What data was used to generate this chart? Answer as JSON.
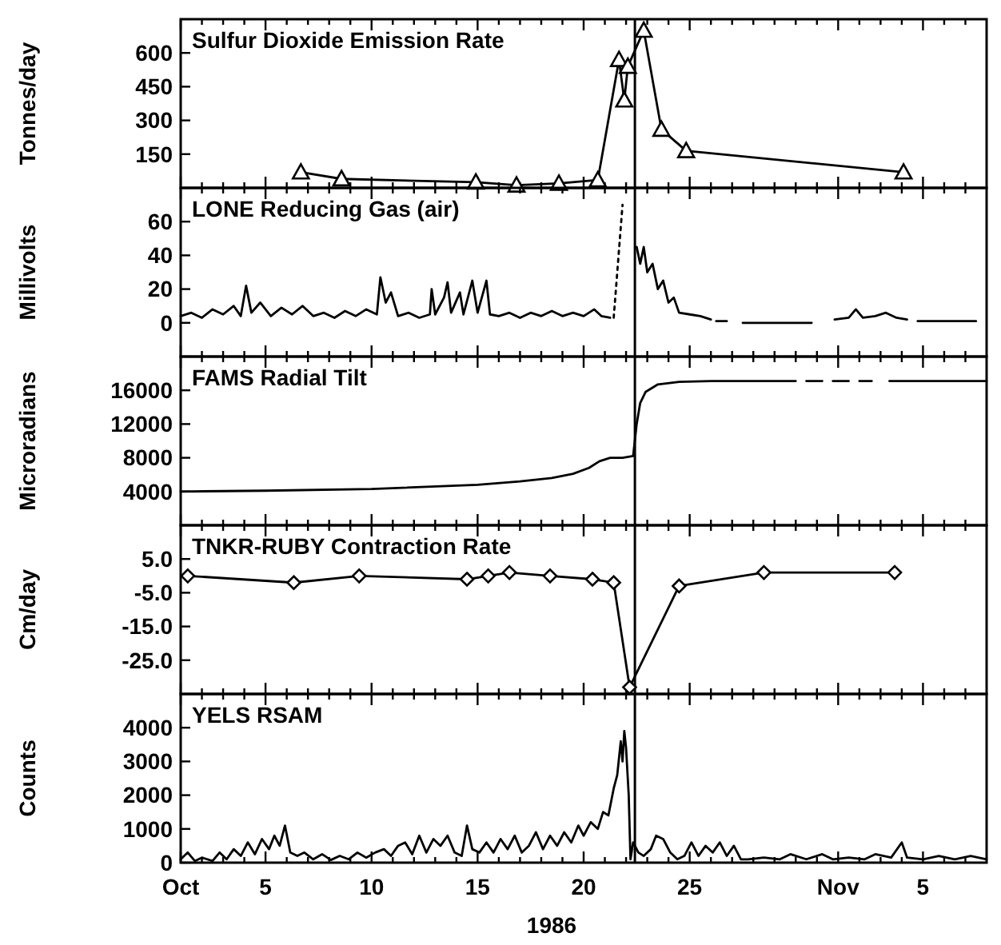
{
  "chart_data": [
    {
      "type": "line",
      "title": "Sulfur Dioxide Emission Rate",
      "ylabel": "Tonnes/day",
      "marker": "triangle",
      "tick_labels": "y",
      "xlim": [
        "1986-10-01",
        "1986-11-08"
      ],
      "ylim": [
        0,
        750
      ],
      "yticks": [
        150,
        300,
        450,
        600
      ],
      "xticks": [
        "1986-10-01",
        {
          "value": "1986-10-02",
          "label": null
        },
        {
          "value": "1986-10-03",
          "label": null
        },
        {
          "value": "1986-10-04",
          "label": null
        },
        "1986-10-05",
        {
          "value": "1986-10-06",
          "label": null
        },
        {
          "value": "1986-10-07",
          "label": null
        },
        {
          "value": "1986-10-08",
          "label": null
        },
        {
          "value": "1986-10-09",
          "label": null
        },
        "1986-10-10",
        {
          "value": "1986-10-11",
          "label": null
        },
        {
          "value": "1986-10-12",
          "label": null
        },
        {
          "value": "1986-10-13",
          "label": null
        },
        {
          "value": "1986-10-14",
          "label": null
        },
        "1986-10-15",
        {
          "value": "1986-10-16",
          "label": null
        },
        {
          "value": "1986-10-17",
          "label": null
        },
        {
          "value": "1986-10-18",
          "label": null
        },
        {
          "value": "1986-10-19",
          "label": null
        },
        "1986-10-20",
        {
          "value": "1986-10-21",
          "label": null
        },
        {
          "value": "1986-10-22",
          "label": null
        },
        {
          "value": "1986-10-23",
          "label": null
        },
        {
          "value": "1986-10-24",
          "label": null
        },
        "1986-10-25",
        {
          "value": "1986-10-26",
          "label": null
        },
        {
          "value": "1986-10-27",
          "label": null
        },
        {
          "value": "1986-10-28",
          "label": null
        },
        {
          "value": "1986-10-29",
          "label": null
        },
        {
          "value": "1986-10-30",
          "label": null
        },
        {
          "value": "1986-10-31",
          "label": null
        },
        "1986-11-01",
        {
          "value": "1986-11-02",
          "label": null
        },
        {
          "value": "1986-11-03",
          "label": null
        },
        {
          "value": "1986-11-04",
          "label": null
        },
        "1986-11-05",
        {
          "value": "1986-11-06",
          "label": null
        },
        {
          "value": "1986-11-07",
          "label": null
        }
      ],
      "ref_lines": [
        {
          "axis": "x",
          "value": "1986-10-22T10:00",
          "color": "#000000"
        }
      ],
      "series": [
        {
          "color": "#000000",
          "x": [
            "1986-10-06T16:00",
            "1986-10-08T14:00",
            "1986-10-14T22:00",
            "1986-10-16T20:00",
            "1986-10-18T20:00",
            "1986-10-20T16:00",
            "1986-10-21T16:00",
            "1986-10-21T22:00",
            "1986-10-22T02:00",
            "1986-10-22T20:00",
            "1986-10-23T16:00",
            "1986-10-24T20:00",
            "1986-11-04T02:00"
          ],
          "values": [
            70,
            40,
            25,
            12,
            20,
            35,
            570,
            390,
            540,
            700,
            260,
            165,
            70
          ]
        }
      ]
    },
    {
      "type": "line",
      "title": "LONE Reducing Gas (air)",
      "ylabel": "Millivolts",
      "marker": "none",
      "tick_labels": "y",
      "xlim": [
        "1986-10-01",
        "1986-11-08"
      ],
      "ylim": [
        -20,
        80
      ],
      "yticks": [
        0,
        20,
        40,
        60
      ],
      "xticks": [
        "1986-10-01",
        {
          "value": "1986-10-02",
          "label": null
        },
        {
          "value": "1986-10-03",
          "label": null
        },
        {
          "value": "1986-10-04",
          "label": null
        },
        "1986-10-05",
        {
          "value": "1986-10-06",
          "label": null
        },
        {
          "value": "1986-10-07",
          "label": null
        },
        {
          "value": "1986-10-08",
          "label": null
        },
        {
          "value": "1986-10-09",
          "label": null
        },
        "1986-10-10",
        {
          "value": "1986-10-11",
          "label": null
        },
        {
          "value": "1986-10-12",
          "label": null
        },
        {
          "value": "1986-10-13",
          "label": null
        },
        {
          "value": "1986-10-14",
          "label": null
        },
        "1986-10-15",
        {
          "value": "1986-10-16",
          "label": null
        },
        {
          "value": "1986-10-17",
          "label": null
        },
        {
          "value": "1986-10-18",
          "label": null
        },
        {
          "value": "1986-10-19",
          "label": null
        },
        "1986-10-20",
        {
          "value": "1986-10-21",
          "label": null
        },
        {
          "value": "1986-10-22",
          "label": null
        },
        {
          "value": "1986-10-23",
          "label": null
        },
        {
          "value": "1986-10-24",
          "label": null
        },
        "1986-10-25",
        {
          "value": "1986-10-26",
          "label": null
        },
        {
          "value": "1986-10-27",
          "label": null
        },
        {
          "value": "1986-10-28",
          "label": null
        },
        {
          "value": "1986-10-29",
          "label": null
        },
        {
          "value": "1986-10-30",
          "label": null
        },
        {
          "value": "1986-10-31",
          "label": null
        },
        "1986-11-01",
        {
          "value": "1986-11-02",
          "label": null
        },
        {
          "value": "1986-11-03",
          "label": null
        },
        {
          "value": "1986-11-04",
          "label": null
        },
        "1986-11-05",
        {
          "value": "1986-11-06",
          "label": null
        },
        {
          "value": "1986-11-07",
          "label": null
        }
      ],
      "ref_lines": [
        {
          "axis": "x",
          "value": "1986-10-22T10:00",
          "color": "#000000"
        }
      ],
      "series": [
        {
          "color": "#000000",
          "line_style": "solid",
          "x": [
            "1986-10-01T00:00",
            "1986-10-01T12:00",
            "1986-10-02T00:00",
            "1986-10-02T12:00",
            "1986-10-03T00:00",
            "1986-10-03T12:00",
            "1986-10-03T20:00",
            "1986-10-04T02:00",
            "1986-10-04T08:00",
            "1986-10-04T18:00",
            "1986-10-05T06:00",
            "1986-10-05T18:00",
            "1986-10-06T06:00",
            "1986-10-06T18:00",
            "1986-10-07T06:00",
            "1986-10-07T18:00",
            "1986-10-08T06:00",
            "1986-10-08T18:00",
            "1986-10-09T06:00",
            "1986-10-09T18:00",
            "1986-10-10T06:00",
            "1986-10-10T10:00",
            "1986-10-10T16:00",
            "1986-10-10T22:00",
            "1986-10-11T06:00",
            "1986-10-11T18:00",
            "1986-10-12T06:00",
            "1986-10-12T18:00",
            "1986-10-12T20:00",
            "1986-10-13T00:00",
            "1986-10-13T10:00",
            "1986-10-13T14:00",
            "1986-10-13T18:00",
            "1986-10-14T04:00",
            "1986-10-14T08:00",
            "1986-10-14T18:00",
            "1986-10-15T00:00",
            "1986-10-15T10:00",
            "1986-10-15T14:00",
            "1986-10-16T00:00",
            "1986-10-16T12:00",
            "1986-10-17T00:00",
            "1986-10-17T12:00",
            "1986-10-18T00:00",
            "1986-10-18T12:00",
            "1986-10-19T00:00",
            "1986-10-19T12:00",
            "1986-10-20T00:00",
            "1986-10-20T12:00",
            "1986-10-20T20:00",
            "1986-10-21T06:00",
            "1986-10-21T08:00",
            "1986-10-22T12:00",
            "1986-10-22T16:00",
            "1986-10-22T20:00",
            "1986-10-23T00:00",
            "1986-10-23T06:00",
            "1986-10-23T12:00",
            "1986-10-23T18:00",
            "1986-10-24T00:00",
            "1986-10-24T06:00",
            "1986-10-24T12:00",
            "1986-10-25T00:00",
            "1986-10-25T12:00",
            "1986-10-26T00:00",
            "1986-10-26T03:00",
            "1986-10-26T06:00",
            "1986-10-26T18:00",
            "1986-10-26T21:00",
            "1986-10-27T12:00",
            "1986-10-30T18:00",
            "1986-10-31T00:00",
            "1986-10-31T20:00",
            "1986-11-01T12:00",
            "1986-11-01T20:00",
            "1986-11-02T04:00",
            "1986-11-02T18:00",
            "1986-11-03T06:00",
            "1986-11-03T18:00",
            "1986-11-04T06:00",
            "1986-11-04T12:00",
            "1986-11-04T18:00",
            "1986-11-07T12:00"
          ],
          "values": [
            4,
            6,
            3,
            8,
            5,
            10,
            4,
            22,
            6,
            12,
            4,
            9,
            5,
            10,
            4,
            6,
            3,
            7,
            4,
            8,
            5,
            27,
            12,
            18,
            4,
            6,
            3,
            5,
            20,
            5,
            15,
            24,
            6,
            18,
            5,
            25,
            6,
            25,
            5,
            4,
            6,
            3,
            6,
            4,
            7,
            4,
            6,
            4,
            8,
            4,
            3,
            null,
            45,
            35,
            45,
            30,
            35,
            20,
            25,
            12,
            15,
            6,
            5,
            4,
            2,
            null,
            1,
            1,
            null,
            0,
            0,
            null,
            2,
            3,
            8,
            3,
            4,
            6,
            3,
            2,
            null,
            1,
            1
          ]
        },
        {
          "color": "#000000",
          "line_style": "dotted",
          "x": [
            "1986-10-21T10:00",
            "1986-10-21T20:00"
          ],
          "values": [
            3,
            70
          ]
        }
      ]
    },
    {
      "type": "line",
      "title": "FAMS Radial Tilt",
      "ylabel": "Microradians",
      "marker": "none",
      "tick_labels": "y",
      "xlim": [
        "1986-10-01",
        "1986-11-08"
      ],
      "ylim": [
        0,
        20000
      ],
      "yticks": [
        4000,
        8000,
        12000,
        16000
      ],
      "xticks": [
        "1986-10-01",
        {
          "value": "1986-10-02",
          "label": null
        },
        {
          "value": "1986-10-03",
          "label": null
        },
        {
          "value": "1986-10-04",
          "label": null
        },
        "1986-10-05",
        {
          "value": "1986-10-06",
          "label": null
        },
        {
          "value": "1986-10-07",
          "label": null
        },
        {
          "value": "1986-10-08",
          "label": null
        },
        {
          "value": "1986-10-09",
          "label": null
        },
        "1986-10-10",
        {
          "value": "1986-10-11",
          "label": null
        },
        {
          "value": "1986-10-12",
          "label": null
        },
        {
          "value": "1986-10-13",
          "label": null
        },
        {
          "value": "1986-10-14",
          "label": null
        },
        "1986-10-15",
        {
          "value": "1986-10-16",
          "label": null
        },
        {
          "value": "1986-10-17",
          "label": null
        },
        {
          "value": "1986-10-18",
          "label": null
        },
        {
          "value": "1986-10-19",
          "label": null
        },
        "1986-10-20",
        {
          "value": "1986-10-21",
          "label": null
        },
        {
          "value": "1986-10-22",
          "label": null
        },
        {
          "value": "1986-10-23",
          "label": null
        },
        {
          "value": "1986-10-24",
          "label": null
        },
        "1986-10-25",
        {
          "value": "1986-10-26",
          "label": null
        },
        {
          "value": "1986-10-27",
          "label": null
        },
        {
          "value": "1986-10-28",
          "label": null
        },
        {
          "value": "1986-10-29",
          "label": null
        },
        {
          "value": "1986-10-30",
          "label": null
        },
        {
          "value": "1986-10-31",
          "label": null
        },
        "1986-11-01",
        {
          "value": "1986-11-02",
          "label": null
        },
        {
          "value": "1986-11-03",
          "label": null
        },
        {
          "value": "1986-11-04",
          "label": null
        },
        "1986-11-05",
        {
          "value": "1986-11-06",
          "label": null
        },
        {
          "value": "1986-11-07",
          "label": null
        }
      ],
      "ref_lines": [
        {
          "axis": "x",
          "value": "1986-10-22T10:00",
          "color": "#000000"
        }
      ],
      "series": [
        {
          "color": "#000000",
          "x": [
            "1986-10-01T00:00",
            "1986-10-05T00:00",
            "1986-10-10T00:00",
            "1986-10-15T00:00",
            "1986-10-17T00:00",
            "1986-10-18T12:00",
            "1986-10-19T12:00",
            "1986-10-20T06:00",
            "1986-10-20T18:00",
            "1986-10-21T06:00",
            "1986-10-21T20:00",
            "1986-10-22T08:00",
            "1986-10-22T12:00",
            "1986-10-22T16:00",
            "1986-10-22T22:00",
            "1986-10-23T12:00",
            "1986-10-24T12:00",
            "1986-10-26T00:00",
            "1986-10-30T00:00",
            "1986-10-30T06:00",
            "1986-10-30T12:00",
            "1986-10-31T06:00",
            "1986-10-31T12:00",
            "1986-10-31T18:00",
            "1986-11-01T12:00",
            "1986-11-01T18:00",
            "1986-11-02T00:00",
            "1986-11-02T14:00",
            "1986-11-02T20:00",
            "1986-11-03T10:00",
            "1986-11-08T00:00"
          ],
          "values": [
            4000,
            4100,
            4300,
            4800,
            5200,
            5600,
            6100,
            6800,
            7600,
            8000,
            8000,
            8200,
            12000,
            14500,
            15800,
            16700,
            17000,
            17100,
            17100,
            null,
            17100,
            17100,
            null,
            17100,
            17100,
            null,
            17100,
            17100,
            null,
            17100,
            17100
          ]
        }
      ]
    },
    {
      "type": "line",
      "title": "TNKR-RUBY Contraction Rate",
      "ylabel": "Cm/day",
      "marker": "diamond",
      "tick_labels": "y",
      "xlim": [
        "1986-10-01",
        "1986-11-08"
      ],
      "ylim": [
        -35,
        15
      ],
      "yticks": [
        {
          "value": 5,
          "label": "5.0"
        },
        {
          "value": -5,
          "label": "-5.0"
        },
        {
          "value": -15,
          "label": "-15.0"
        },
        {
          "value": -25,
          "label": "-25.0"
        }
      ],
      "xticks": [
        "1986-10-01",
        {
          "value": "1986-10-02",
          "label": null
        },
        {
          "value": "1986-10-03",
          "label": null
        },
        {
          "value": "1986-10-04",
          "label": null
        },
        "1986-10-05",
        {
          "value": "1986-10-06",
          "label": null
        },
        {
          "value": "1986-10-07",
          "label": null
        },
        {
          "value": "1986-10-08",
          "label": null
        },
        {
          "value": "1986-10-09",
          "label": null
        },
        "1986-10-10",
        {
          "value": "1986-10-11",
          "label": null
        },
        {
          "value": "1986-10-12",
          "label": null
        },
        {
          "value": "1986-10-13",
          "label": null
        },
        {
          "value": "1986-10-14",
          "label": null
        },
        "1986-10-15",
        {
          "value": "1986-10-16",
          "label": null
        },
        {
          "value": "1986-10-17",
          "label": null
        },
        {
          "value": "1986-10-18",
          "label": null
        },
        {
          "value": "1986-10-19",
          "label": null
        },
        "1986-10-20",
        {
          "value": "1986-10-21",
          "label": null
        },
        {
          "value": "1986-10-22",
          "label": null
        },
        {
          "value": "1986-10-23",
          "label": null
        },
        {
          "value": "1986-10-24",
          "label": null
        },
        "1986-10-25",
        {
          "value": "1986-10-26",
          "label": null
        },
        {
          "value": "1986-10-27",
          "label": null
        },
        {
          "value": "1986-10-28",
          "label": null
        },
        {
          "value": "1986-10-29",
          "label": null
        },
        {
          "value": "1986-10-30",
          "label": null
        },
        {
          "value": "1986-10-31",
          "label": null
        },
        "1986-11-01",
        {
          "value": "1986-11-02",
          "label": null
        },
        {
          "value": "1986-11-03",
          "label": null
        },
        {
          "value": "1986-11-04",
          "label": null
        },
        "1986-11-05",
        {
          "value": "1986-11-06",
          "label": null
        },
        {
          "value": "1986-11-07",
          "label": null
        }
      ],
      "ref_lines": [
        {
          "axis": "x",
          "value": "1986-10-22T10:00",
          "color": "#000000"
        }
      ],
      "series": [
        {
          "color": "#000000",
          "x": [
            "1986-10-01T08:00",
            "1986-10-06T08:00",
            "1986-10-09T10:00",
            "1986-10-14T12:00",
            "1986-10-15T12:00",
            "1986-10-16T12:00",
            "1986-10-18T10:00",
            "1986-10-20T10:00",
            "1986-10-21T10:00",
            "1986-10-22T04:00",
            "1986-10-24T12:00",
            "1986-10-28T12:00",
            "1986-11-03T16:00"
          ],
          "values": [
            0,
            -2,
            0,
            -1,
            0,
            1,
            0,
            -1,
            -2,
            -33,
            -3,
            1,
            1
          ]
        }
      ]
    },
    {
      "type": "line",
      "title": "YELS RSAM",
      "ylabel": "Counts",
      "xlabel": "1986",
      "marker": "none",
      "xlim": [
        "1986-10-01",
        "1986-11-08"
      ],
      "ylim": [
        0,
        5000
      ],
      "yticks": [
        0,
        1000,
        2000,
        3000,
        4000
      ],
      "xticks": [
        {
          "value": "1986-10-01",
          "label": "Oct"
        },
        {
          "value": "1986-10-02",
          "label": null
        },
        {
          "value": "1986-10-03",
          "label": null
        },
        {
          "value": "1986-10-04",
          "label": null
        },
        {
          "value": "1986-10-05",
          "label": "5"
        },
        {
          "value": "1986-10-06",
          "label": null
        },
        {
          "value": "1986-10-07",
          "label": null
        },
        {
          "value": "1986-10-08",
          "label": null
        },
        {
          "value": "1986-10-09",
          "label": null
        },
        {
          "value": "1986-10-10",
          "label": "10"
        },
        {
          "value": "1986-10-11",
          "label": null
        },
        {
          "value": "1986-10-12",
          "label": null
        },
        {
          "value": "1986-10-13",
          "label": null
        },
        {
          "value": "1986-10-14",
          "label": null
        },
        {
          "value": "1986-10-15",
          "label": "15"
        },
        {
          "value": "1986-10-16",
          "label": null
        },
        {
          "value": "1986-10-17",
          "label": null
        },
        {
          "value": "1986-10-18",
          "label": null
        },
        {
          "value": "1986-10-19",
          "label": null
        },
        {
          "value": "1986-10-20",
          "label": "20"
        },
        {
          "value": "1986-10-21",
          "label": null
        },
        {
          "value": "1986-10-22",
          "label": null
        },
        {
          "value": "1986-10-23",
          "label": null
        },
        {
          "value": "1986-10-24",
          "label": null
        },
        {
          "value": "1986-10-25",
          "label": "25"
        },
        {
          "value": "1986-10-26",
          "label": null
        },
        {
          "value": "1986-10-27",
          "label": null
        },
        {
          "value": "1986-10-28",
          "label": null
        },
        {
          "value": "1986-10-29",
          "label": null
        },
        {
          "value": "1986-10-30",
          "label": null
        },
        {
          "value": "1986-10-31",
          "label": null
        },
        {
          "value": "1986-11-01",
          "label": "Nov"
        },
        {
          "value": "1986-11-02",
          "label": null
        },
        {
          "value": "1986-11-03",
          "label": null
        },
        {
          "value": "1986-11-04",
          "label": null
        },
        {
          "value": "1986-11-05",
          "label": "5"
        },
        {
          "value": "1986-11-06",
          "label": null
        },
        {
          "value": "1986-11-07",
          "label": null
        }
      ],
      "ref_lines": [
        {
          "axis": "x",
          "value": "1986-10-22T10:00",
          "color": "#000000"
        }
      ],
      "series": [
        {
          "color": "#000000",
          "x": [
            "1986-10-01T00:00",
            "1986-10-01T08:00",
            "1986-10-01T16:00",
            "1986-10-02T00:00",
            "1986-10-02T12:00",
            "1986-10-02T20:00",
            "1986-10-03T04:00",
            "1986-10-03T12:00",
            "1986-10-03T20:00",
            "1986-10-04T04:00",
            "1986-10-04T12:00",
            "1986-10-04T20:00",
            "1986-10-05T04:00",
            "1986-10-05T10:00",
            "1986-10-05T16:00",
            "1986-10-05T22:00",
            "1986-10-06T04:00",
            "1986-10-06T12:00",
            "1986-10-06T20:00",
            "1986-10-07T06:00",
            "1986-10-07T16:00",
            "1986-10-08T02:00",
            "1986-10-08T12:00",
            "1986-10-08T22:00",
            "1986-10-09T08:00",
            "1986-10-09T18:00",
            "1986-10-10T04:00",
            "1986-10-10T14:00",
            "1986-10-10T22:00",
            "1986-10-11T06:00",
            "1986-10-11T14:00",
            "1986-10-11T22:00",
            "1986-10-12T06:00",
            "1986-10-12T14:00",
            "1986-10-12T22:00",
            "1986-10-13T06:00",
            "1986-10-13T14:00",
            "1986-10-13T22:00",
            "1986-10-14T06:00",
            "1986-10-14T12:00",
            "1986-10-14T18:00",
            "1986-10-15T02:00",
            "1986-10-15T10:00",
            "1986-10-15T18:00",
            "1986-10-16T02:00",
            "1986-10-16T10:00",
            "1986-10-16T18:00",
            "1986-10-17T02:00",
            "1986-10-17T10:00",
            "1986-10-17T18:00",
            "1986-10-18T02:00",
            "1986-10-18T10:00",
            "1986-10-18T18:00",
            "1986-10-19T02:00",
            "1986-10-19T10:00",
            "1986-10-19T18:00",
            "1986-10-20T00:00",
            "1986-10-20T08:00",
            "1986-10-20T16:00",
            "1986-10-20T22:00",
            "1986-10-21T04:00",
            "1986-10-21T10:00",
            "1986-10-21T14:00",
            "1986-10-21T18:00",
            "1986-10-21T20:00",
            "1986-10-21T22:00",
            "1986-10-22T00:00",
            "1986-10-22T03:00",
            "1986-10-22T05:00",
            "1986-10-22T08:00",
            "1986-10-22T14:00",
            "1986-10-22T20:00",
            "1986-10-23T04:00",
            "1986-10-23T10:00",
            "1986-10-23T18:00",
            "1986-10-24T02:00",
            "1986-10-24T10:00",
            "1986-10-24T18:00",
            "1986-10-25T02:00",
            "1986-10-25T10:00",
            "1986-10-25T18:00",
            "1986-10-26T02:00",
            "1986-10-26T10:00",
            "1986-10-26T18:00",
            "1986-10-27T02:00",
            "1986-10-27T10:00",
            "1986-10-27T18:00",
            "1986-10-28T12:00",
            "1986-10-29T06:00",
            "1986-10-29T18:00",
            "1986-10-30T12:00",
            "1986-10-31T06:00",
            "1986-10-31T18:00",
            "1986-11-01T12:00",
            "1986-11-02T06:00",
            "1986-11-02T18:00",
            "1986-11-03T12:00",
            "1986-11-04T00:00",
            "1986-11-04T06:00",
            "1986-11-05T00:00",
            "1986-11-05T18:00",
            "1986-11-06T12:00",
            "1986-11-07T06:00",
            "1986-11-08T00:00"
          ],
          "values": [
            100,
            300,
            50,
            150,
            50,
            300,
            100,
            400,
            200,
            600,
            250,
            700,
            400,
            800,
            500,
            1100,
            300,
            200,
            300,
            100,
            250,
            80,
            200,
            100,
            300,
            150,
            300,
            400,
            200,
            500,
            600,
            250,
            800,
            300,
            700,
            500,
            800,
            300,
            200,
            1100,
            400,
            300,
            600,
            300,
            700,
            400,
            800,
            300,
            500,
            900,
            400,
            800,
            500,
            900,
            600,
            1100,
            800,
            1200,
            1000,
            1500,
            1400,
            2200,
            2600,
            3600,
            3000,
            3900,
            3400,
            2000,
            100,
            600,
            300,
            200,
            400,
            800,
            700,
            300,
            100,
            200,
            600,
            200,
            500,
            300,
            600,
            200,
            500,
            100,
            100,
            150,
            100,
            250,
            100,
            250,
            100,
            150,
            100,
            250,
            150,
            600,
            150,
            100,
            200,
            100,
            200,
            100
          ]
        }
      ]
    }
  ]
}
